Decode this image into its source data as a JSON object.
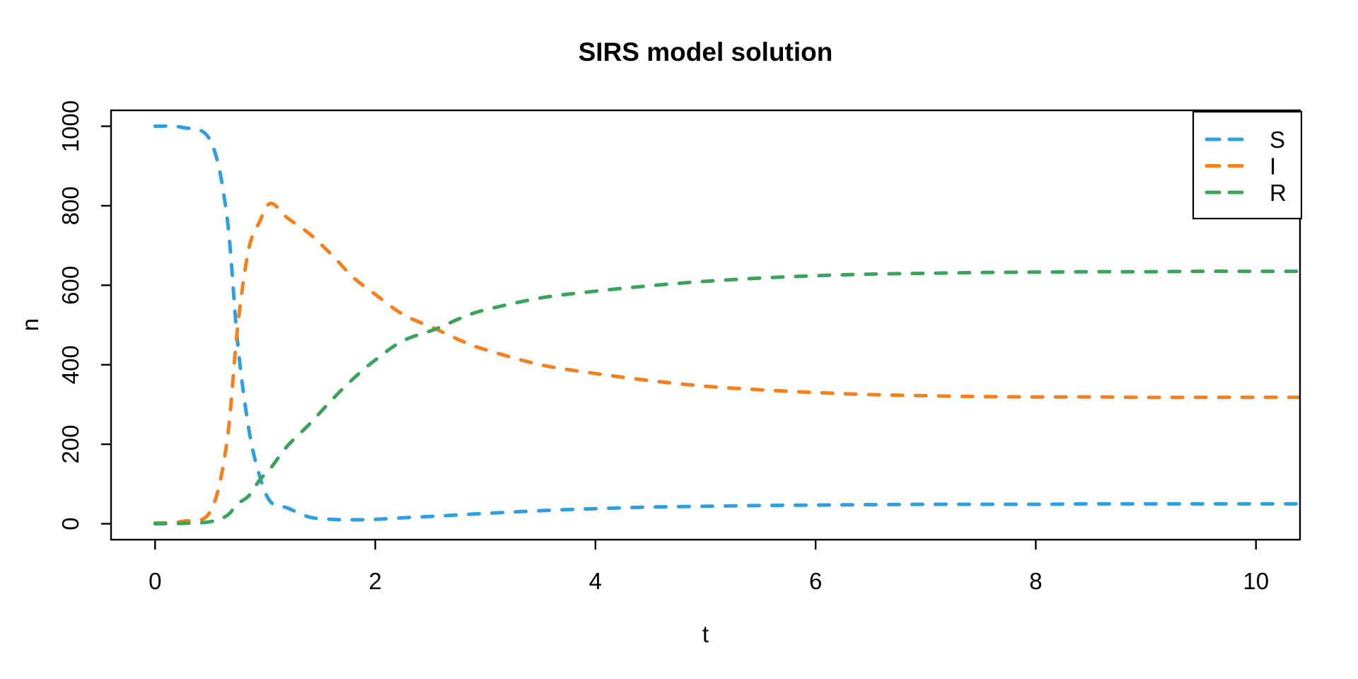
{
  "title": "SIRS model solution",
  "axes": {
    "x": {
      "label": "t",
      "ticks": [
        0,
        2,
        4,
        6,
        8,
        10
      ]
    },
    "y": {
      "label": "n",
      "ticks": [
        0,
        200,
        400,
        600,
        800,
        1000
      ]
    }
  },
  "legend": {
    "position": "topright",
    "line_style": "dashed",
    "entries": [
      {
        "label": "S",
        "color": "#2E9FDF"
      },
      {
        "label": "I",
        "color": "#F5801E"
      },
      {
        "label": "R",
        "color": "#3AA45C"
      }
    ]
  },
  "chart_data": {
    "type": "line",
    "title": "SIRS model solution",
    "xlabel": "t",
    "ylabel": "n",
    "xlim": [
      0,
      10.4
    ],
    "ylim": [
      0,
      1000
    ],
    "xlim_display": [
      -0.4,
      10.4
    ],
    "ylim_display": [
      -40,
      1040
    ],
    "grid": false,
    "line_style": "dashed",
    "x": [
      0,
      0.25,
      0.5,
      0.65,
      0.75,
      0.85,
      0.95,
      1.05,
      1.2,
      1.4,
      1.6,
      1.8,
      2,
      2.25,
      2.55,
      2.8,
      3,
      3.5,
      4,
      4.5,
      5,
      5.5,
      6,
      6.5,
      7,
      7.5,
      8,
      8.5,
      9,
      9.5,
      10,
      10.4
    ],
    "series": [
      {
        "name": "S",
        "color": "#2E9FDF",
        "values": [
          1000,
          997,
          965,
          780,
          455,
          240,
          120,
          55,
          40,
          17,
          11,
          10,
          11,
          15,
          19,
          23,
          26,
          33,
          38,
          42,
          44,
          46,
          47,
          48,
          49,
          49,
          49,
          50,
          50,
          50,
          50,
          50
        ]
      },
      {
        "name": "I",
        "color": "#F5801E",
        "values": [
          2,
          6,
          30,
          200,
          495,
          690,
          760,
          806,
          770,
          730,
          678,
          620,
          577,
          527,
          490,
          458,
          438,
          400,
          378,
          360,
          346,
          337,
          330,
          325,
          322,
          320,
          319,
          319,
          318,
          318,
          318,
          318
        ]
      },
      {
        "name": "R",
        "color": "#3AA45C",
        "values": [
          0,
          1,
          5,
          20,
          50,
          70,
          110,
          140,
          195,
          250,
          310,
          365,
          412,
          460,
          490,
          520,
          538,
          568,
          585,
          599,
          610,
          618,
          624,
          628,
          630,
          632,
          633,
          634,
          634,
          635,
          635,
          635
        ]
      }
    ],
    "annotations": {
      "S_I_crossing": {
        "t": 0.73,
        "n": 470
      },
      "I_R_crossing": {
        "t": 2.55,
        "n": 490
      },
      "I_peak": {
        "t": 1.05,
        "n": 806
      }
    }
  }
}
